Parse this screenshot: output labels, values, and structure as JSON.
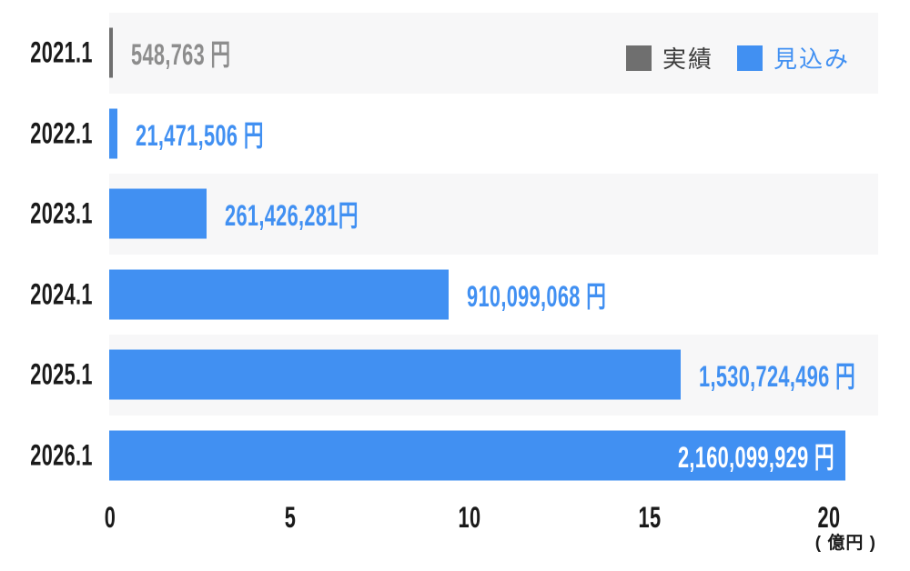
{
  "legend": {
    "actual_label": "実績",
    "forecast_label": "見込み"
  },
  "colors": {
    "forecast_blue": "#4190f2",
    "actual_gray": "#6f6f6f",
    "value_label_gray": "#8d8d8d",
    "inside_label_white": "#ffffff",
    "text_dark": "#1a1a1a",
    "legend_text_dark": "#3c3c3c",
    "band_gray": "#f7f7f8"
  },
  "chart_data": {
    "type": "bar",
    "orientation": "horizontal",
    "categories": [
      "2021.1",
      "2022.1",
      "2023.1",
      "2024.1",
      "2025.1",
      "2026.1"
    ],
    "series": [
      {
        "name": "実績",
        "color": "#6f6f6f",
        "values": [
          548763,
          null,
          null,
          null,
          null,
          null
        ]
      },
      {
        "name": "見込み",
        "color": "#4190f2",
        "values": [
          null,
          21471506,
          261426281,
          910099068,
          1530724496,
          2160099929
        ]
      }
    ],
    "value_labels": [
      "548,763 円",
      "21,471,506 円",
      "261,426,281円",
      "910,099,068 円",
      "1,530,724,496 円",
      "2,160,099,929 円"
    ],
    "value_label_positions": [
      "outside",
      "outside",
      "outside",
      "outside",
      "outside",
      "inside"
    ],
    "x_ticks": [
      "0",
      "5",
      "10",
      "15",
      "20"
    ],
    "xlabel": "( 億円 )",
    "xlim_oku": [
      0,
      20
    ],
    "grid": false,
    "legend_position": "top-right",
    "row_banding": "alternating-gray-starting-first-row"
  }
}
